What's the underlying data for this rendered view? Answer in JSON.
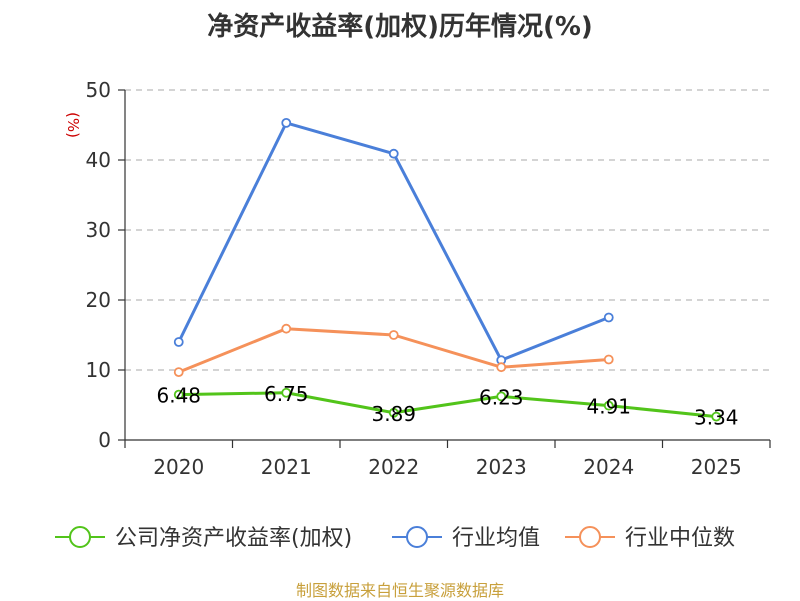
{
  "chart_data": {
    "type": "line",
    "title": "净资产收益率(加权)历年情况(%)",
    "ylabel": "(%)",
    "xlabel": "",
    "categories": [
      "2020",
      "2021",
      "2022",
      "2023",
      "2024",
      "2025"
    ],
    "ylim": [
      0,
      50
    ],
    "yticks": [
      0,
      10,
      20,
      30,
      40,
      50
    ],
    "grid": true,
    "legend_position": "bottom",
    "series": [
      {
        "name": "公司净资产收益率(加权)",
        "color": "#52c41a",
        "values": [
          6.48,
          6.75,
          3.89,
          6.23,
          4.91,
          3.34
        ],
        "labels": [
          "6.48",
          "6.75",
          "3.89",
          "6.23",
          "4.91",
          "3.34"
        ]
      },
      {
        "name": "行业均值",
        "color": "#4a7fd9",
        "values": [
          14.0,
          45.3,
          40.9,
          11.4,
          17.5,
          null
        ]
      },
      {
        "name": "行业中位数",
        "color": "#f5915a",
        "values": [
          9.7,
          15.9,
          15.0,
          10.4,
          11.5,
          null
        ]
      }
    ]
  },
  "source_note": "制图数据来自恒生聚源数据库"
}
